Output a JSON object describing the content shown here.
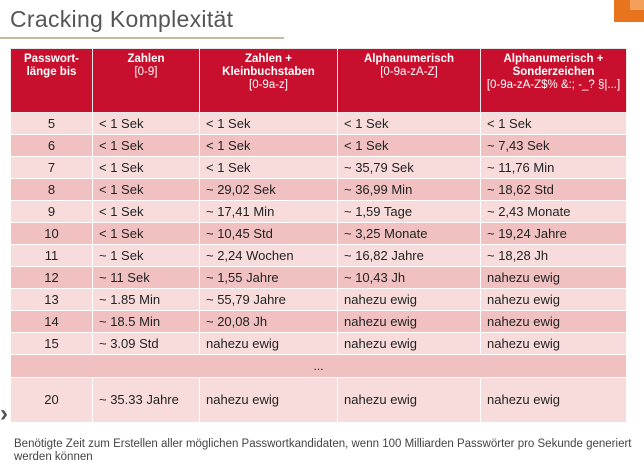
{
  "title": "Cracking Komplexität",
  "table": {
    "headers": [
      {
        "title": "Passwort-länge bis",
        "sub": ""
      },
      {
        "title": "Zahlen",
        "sub": "[0-9]"
      },
      {
        "title": "Zahlen + Kleinbuchstaben",
        "sub": "[0-9a-z]"
      },
      {
        "title": "Alphanumerisch",
        "sub": "[0-9a-zA-Z]"
      },
      {
        "title": "Alphanumerisch + Sonderzeichen",
        "sub": "[0-9a-zA-Z$% &:; -_? §|...]"
      }
    ],
    "rows": [
      [
        "5",
        "< 1 Sek",
        "< 1 Sek",
        "< 1 Sek",
        "< 1 Sek"
      ],
      [
        "6",
        "< 1 Sek",
        "< 1 Sek",
        "< 1 Sek",
        "~ 7,43 Sek"
      ],
      [
        "7",
        "< 1 Sek",
        "< 1 Sek",
        "~ 35,79 Sek",
        "~ 11,76 Min"
      ],
      [
        "8",
        "< 1 Sek",
        "~ 29,02 Sek",
        "~ 36,99 Min",
        "~ 18,62 Std"
      ],
      [
        "9",
        "< 1 Sek",
        "~ 17,41 Min",
        "~ 1,59 Tage",
        "~ 2,43 Monate"
      ],
      [
        "10",
        "< 1 Sek",
        "~ 10,45 Std",
        "~ 3,25 Monate",
        "~ 19,24 Jahre"
      ],
      [
        "11",
        "~ 1 Sek",
        "~ 2,24 Wochen",
        "~ 16,82 Jahre",
        "~ 18,28 Jh"
      ],
      [
        "12",
        "~ 11 Sek",
        "~ 1,55 Jahre",
        "~ 10,43 Jh",
        "nahezu ewig"
      ],
      [
        "13",
        "~ 1.85 Min",
        "~ 55,79 Jahre",
        "nahezu ewig",
        "nahezu ewig"
      ],
      [
        "14",
        "~ 18.5 Min",
        "~ 20,08 Jh",
        "nahezu ewig",
        "nahezu ewig"
      ],
      [
        "15",
        "~ 3.09 Std",
        "nahezu ewig",
        "nahezu ewig",
        "nahezu ewig"
      ]
    ],
    "ellipsis": "...",
    "last_row": [
      "20",
      "~ 35.33 Jahre",
      "nahezu ewig",
      "nahezu ewig",
      "nahezu ewig"
    ]
  },
  "footnote": "Benötigte Zeit zum Erstellen aller möglichen Passwortkandidaten, wenn 100 Milliarden Passwörter pro Sekunde generiert werden können",
  "colors": {
    "header_bg": "#c8102e",
    "row_light": "#f8dcdc",
    "row_dark": "#f1c0c0",
    "accent": "#e8741e"
  }
}
